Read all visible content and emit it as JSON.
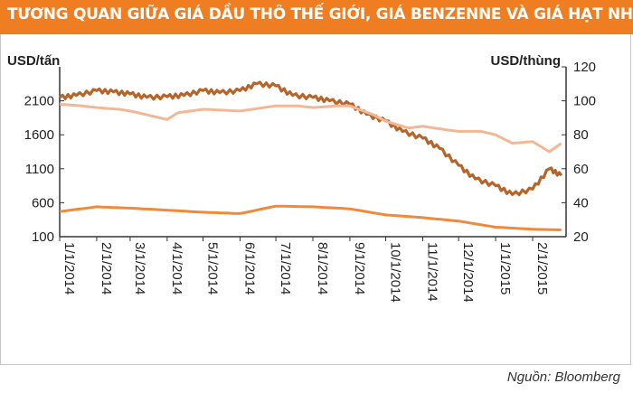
{
  "title": "TƯƠNG QUAN GIỮA GIÁ DẦU THÔ THẾ GIỚI, GIÁ BENZENNE VÀ GIÁ HẠT NHỰA",
  "source": "Nguồn:  Bloomberg",
  "colors": {
    "title_bg": "#ef7d22",
    "dark": "#b5652a",
    "light": "#f2b896",
    "orange": "#ef8a3c"
  },
  "chart_data": {
    "type": "line",
    "left_axis": {
      "label": "USD/tấn",
      "ticks": [
        100,
        600,
        1100,
        1600,
        2100
      ],
      "range": [
        100,
        2600
      ]
    },
    "right_axis": {
      "label": "USD/thùng",
      "ticks": [
        20,
        40,
        60,
        80,
        100,
        120
      ],
      "range": [
        20,
        120
      ]
    },
    "x_ticks": [
      "1/1/2014",
      "2/1/2014",
      "3/1/2014",
      "4/1/2014",
      "5/1/2014",
      "6/1/2014",
      "7/1/2014",
      "8/1/2014",
      "9/1/2014",
      "10/1/2014",
      "11/1/2014",
      "12/1/2014",
      "1/1/2015",
      "2/1/2015"
    ],
    "series": [
      {
        "axis": "left",
        "color": "#b5652a",
        "x": [
          "2014-01-01",
          "2014-01-15",
          "2014-02-01",
          "2014-02-15",
          "2014-03-01",
          "2014-03-15",
          "2014-04-01",
          "2014-04-15",
          "2014-05-01",
          "2014-05-15",
          "2014-06-01",
          "2014-06-15",
          "2014-07-01",
          "2014-07-15",
          "2014-08-01",
          "2014-08-15",
          "2014-09-01",
          "2014-09-15",
          "2014-10-01",
          "2014-10-15",
          "2014-11-01",
          "2014-11-15",
          "2014-12-01",
          "2014-12-15",
          "2015-01-01",
          "2015-01-15",
          "2015-02-01",
          "2015-02-15",
          "2015-02-25"
        ],
        "y": [
          2150,
          2180,
          2250,
          2230,
          2200,
          2150,
          2160,
          2180,
          2250,
          2220,
          2250,
          2350,
          2320,
          2180,
          2150,
          2100,
          2050,
          1900,
          1800,
          1650,
          1550,
          1400,
          1150,
          950,
          850,
          720,
          800,
          1100,
          1000
        ]
      },
      {
        "axis": "right",
        "color": "#f2b896",
        "x": [
          "2014-01-01",
          "2014-01-20",
          "2014-02-01",
          "2014-02-20",
          "2014-03-01",
          "2014-04-01",
          "2014-04-10",
          "2014-05-01",
          "2014-06-01",
          "2014-07-01",
          "2014-07-20",
          "2014-08-01",
          "2014-08-20",
          "2014-09-01",
          "2014-09-20",
          "2014-10-01",
          "2014-10-20",
          "2014-11-01",
          "2014-11-20",
          "2014-12-01",
          "2014-12-20",
          "2015-01-01",
          "2015-01-15",
          "2015-02-01",
          "2015-02-15",
          "2015-02-25"
        ],
        "y": [
          98,
          97,
          96,
          95,
          94,
          89,
          93,
          95,
          94,
          97,
          97,
          96,
          97,
          97,
          92,
          88,
          84,
          85,
          83,
          82,
          82,
          80,
          75,
          76,
          70,
          75
        ]
      },
      {
        "axis": "left",
        "color": "#ef8a3c",
        "x": [
          "2014-01-01",
          "2014-02-01",
          "2014-03-01",
          "2014-04-01",
          "2014-05-01",
          "2014-06-01",
          "2014-07-01",
          "2014-08-01",
          "2014-09-01",
          "2014-10-01",
          "2014-11-01",
          "2014-12-01",
          "2015-01-01",
          "2015-02-01",
          "2015-02-25"
        ],
        "y": [
          470,
          540,
          520,
          490,
          460,
          440,
          550,
          540,
          510,
          420,
          380,
          330,
          240,
          210,
          200
        ]
      }
    ]
  }
}
